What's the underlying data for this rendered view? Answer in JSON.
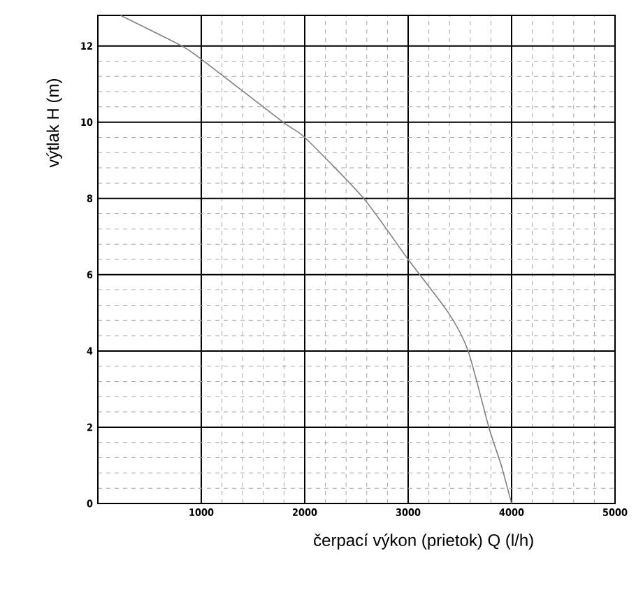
{
  "chart_data": {
    "type": "line",
    "xlabel": "čerpací výkon (prietok) Q (l/h)",
    "ylabel": "výtlak H (m)",
    "x": [
      220,
      810,
      1000,
      1790,
      2000,
      2570,
      3000,
      3390,
      3580,
      3780,
      3900,
      4000
    ],
    "series": [
      {
        "color": "#808080",
        "values": [
          12.8,
          12,
          11.65,
          10,
          9.6,
          8,
          6.4,
          5,
          4,
          2,
          1,
          0
        ]
      }
    ],
    "xlim": [
      0,
      5000
    ],
    "ylim": [
      0,
      12.8
    ],
    "xticks": [
      1000,
      2000,
      3000,
      4000,
      5000
    ],
    "yticks": [
      0,
      2,
      4,
      6,
      8,
      10,
      12
    ],
    "grid": true,
    "marker": "none",
    "line_style": "solid"
  }
}
